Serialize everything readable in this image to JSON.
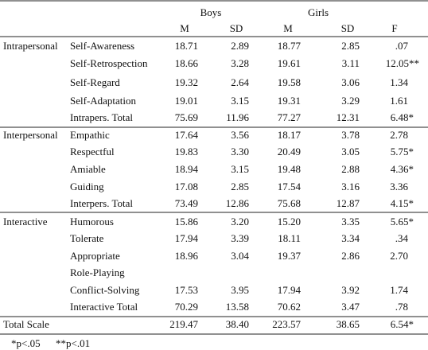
{
  "header": {
    "boys": "Boys",
    "girls": "Girls",
    "columns": [
      "M",
      "SD",
      "M",
      "SD",
      "F"
    ]
  },
  "groups": [
    {
      "label": "Intrapersonal",
      "rows": [
        {
          "item": "Self-Awareness",
          "values": [
            "18.71",
            "2.89",
            "18.77",
            "2.85",
            ".07"
          ]
        },
        {
          "item": "Self-Retrospection",
          "values": [
            "18.66",
            "3.28",
            "19.61",
            "3.11",
            "12.05**"
          ]
        },
        {
          "item": "Self-Regard",
          "values": [
            "19.32",
            "2.64",
            "19.58",
            "3.06",
            "1.34"
          ]
        },
        {
          "item": "Self-Adaptation",
          "values": [
            "19.01",
            "3.15",
            "19.31",
            "3.29",
            "1.61"
          ]
        },
        {
          "item": "Intrapers. Total",
          "values": [
            "75.69",
            "11.96",
            "77.27",
            "12.31",
            "6.48*"
          ]
        }
      ]
    },
    {
      "label": "Interpersonal",
      "rows": [
        {
          "item": "Empathic",
          "values": [
            "17.64",
            "3.56",
            "18.17",
            "3.78",
            "2.78"
          ]
        },
        {
          "item": "Respectful",
          "values": [
            "19.83",
            "3.30",
            "20.49",
            "3.05",
            "5.75*"
          ]
        },
        {
          "item": "Amiable",
          "values": [
            "18.94",
            "3.15",
            "19.48",
            "2.88",
            "4.36*"
          ]
        },
        {
          "item": "Guiding",
          "values": [
            "17.08",
            "2.85",
            "17.54",
            "3.16",
            "3.36"
          ]
        },
        {
          "item": "Interpers. Total",
          "values": [
            "73.49",
            "12.86",
            "75.68",
            "12.87",
            "4.15*"
          ]
        }
      ]
    },
    {
      "label": "Interactive",
      "rows": [
        {
          "item": "Humorous",
          "values": [
            "15.86",
            "3.20",
            "15.20",
            "3.35",
            "5.65*"
          ]
        },
        {
          "item": "Tolerate",
          "values": [
            "17.94",
            "3.39",
            "18.11",
            "3.34",
            ".34"
          ]
        },
        {
          "item": "Appropriate",
          "values": [
            "18.96",
            "3.04",
            "19.37",
            "2.86",
            "2.70"
          ]
        },
        {
          "item": "Role-Playing",
          "values": []
        },
        {
          "item": "Conflict-Solving",
          "values": [
            "17.53",
            "3.95",
            "17.94",
            "3.92",
            "1.74"
          ]
        },
        {
          "item": "Interactive Total",
          "values": [
            "70.29",
            "13.58",
            "70.62",
            "3.47",
            ".78"
          ]
        }
      ]
    },
    {
      "label": "Total Scale",
      "rows": [
        {
          "values": [
            "219.47",
            "38.40",
            "223.57",
            "38.65",
            "6.54*"
          ]
        }
      ]
    }
  ],
  "footnotes": [
    "*p<.05",
    "**p<.01"
  ]
}
